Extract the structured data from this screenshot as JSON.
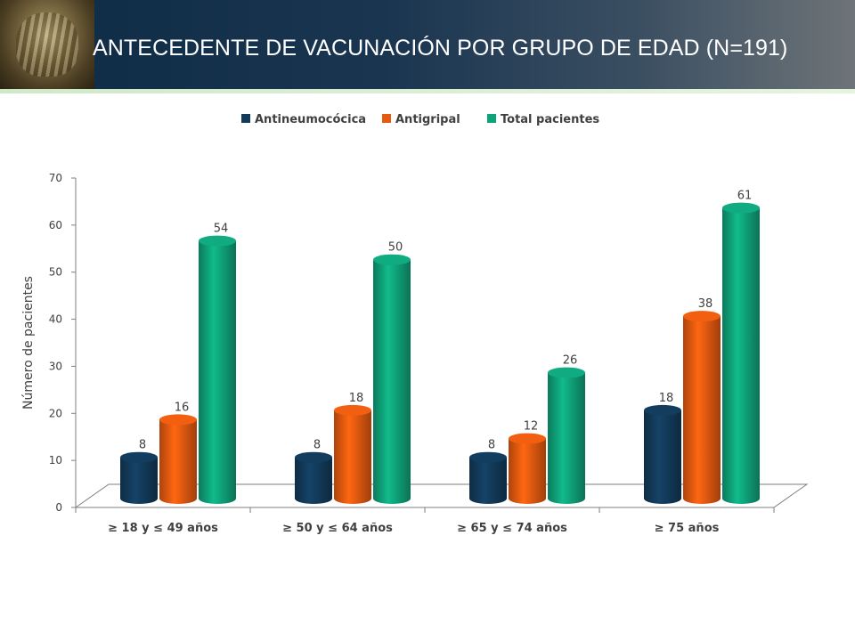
{
  "header": {
    "title": "ANTECEDENTE DE VACUNACIÓN POR GRUPO DE EDAD (N=191)"
  },
  "chart_data": {
    "type": "bar",
    "categories": [
      "≥ 18 y ≤ 49 años",
      "≥ 50 y ≤ 64 años",
      "≥ 65 y ≤ 74 años",
      "≥ 75 años"
    ],
    "series": [
      {
        "name": "Antineumocócica",
        "values": [
          8,
          8,
          8,
          18
        ],
        "color": "#123a5a"
      },
      {
        "name": "Antigripal",
        "values": [
          16,
          18,
          12,
          38
        ],
        "color": "#e65a10"
      },
      {
        "name": "Total pacientes",
        "values": [
          54,
          50,
          26,
          61
        ],
        "color": "#0fa37a"
      }
    ],
    "ylabel": "Número de pacientes",
    "ylim": [
      0,
      70
    ],
    "yticks": [
      0,
      10,
      20,
      30,
      40,
      50,
      60,
      70
    ],
    "legend_position": "top",
    "style": "3d-cylinder"
  }
}
